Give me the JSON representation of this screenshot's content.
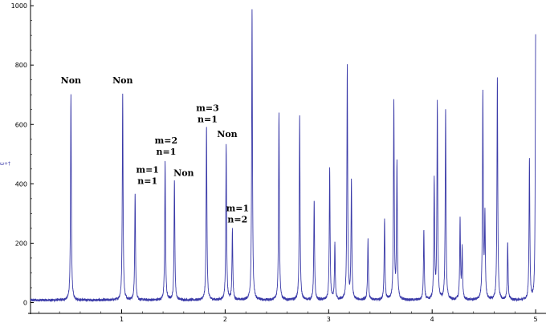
{
  "chart_data": {
    "type": "line",
    "title": "",
    "xlabel": "",
    "ylabel": "",
    "y_axis_glyph": "ω+†",
    "xlim": [
      0,
      5
    ],
    "ylim": [
      0,
      1000
    ],
    "x_ticks": [
      1,
      2,
      3,
      4,
      5
    ],
    "x_tick_labels": [
      "1",
      "2",
      "3",
      "4",
      "5"
    ],
    "y_ticks": [
      0,
      200,
      400,
      600,
      800,
      1000
    ],
    "y_tick_labels": [
      "0",
      "200",
      "400",
      "600",
      "800",
      "1000"
    ],
    "grid": false,
    "line_color": "#3a3aa8",
    "baseline": 8,
    "series": [
      {
        "peaks": [
          {
            "x": 0.51,
            "y": 700
          },
          {
            "x": 1.01,
            "y": 705
          },
          {
            "x": 1.13,
            "y": 368
          },
          {
            "x": 1.42,
            "y": 475
          },
          {
            "x": 1.51,
            "y": 412
          },
          {
            "x": 1.82,
            "y": 592
          },
          {
            "x": 2.01,
            "y": 530
          },
          {
            "x": 2.07,
            "y": 245
          },
          {
            "x": 2.26,
            "y": 985
          },
          {
            "x": 2.52,
            "y": 638
          },
          {
            "x": 2.72,
            "y": 625
          },
          {
            "x": 2.86,
            "y": 342
          },
          {
            "x": 3.01,
            "y": 450
          },
          {
            "x": 3.06,
            "y": 195
          },
          {
            "x": 3.18,
            "y": 793
          },
          {
            "x": 3.22,
            "y": 405
          },
          {
            "x": 3.38,
            "y": 212
          },
          {
            "x": 3.54,
            "y": 280
          },
          {
            "x": 3.63,
            "y": 675
          },
          {
            "x": 3.66,
            "y": 465
          },
          {
            "x": 3.92,
            "y": 245
          },
          {
            "x": 4.02,
            "y": 408
          },
          {
            "x": 4.05,
            "y": 668
          },
          {
            "x": 4.13,
            "y": 648
          },
          {
            "x": 4.27,
            "y": 275
          },
          {
            "x": 4.29,
            "y": 180
          },
          {
            "x": 4.49,
            "y": 700
          },
          {
            "x": 4.51,
            "y": 280
          },
          {
            "x": 4.63,
            "y": 755
          },
          {
            "x": 4.73,
            "y": 202
          },
          {
            "x": 4.94,
            "y": 478
          },
          {
            "x": 5.0,
            "y": 897
          }
        ]
      }
    ],
    "annotations": [
      {
        "lines": [
          "Non"
        ],
        "x": 0.51,
        "y": 738
      },
      {
        "lines": [
          "Non"
        ],
        "x": 1.01,
        "y": 738
      },
      {
        "lines": [
          "m=1",
          "n=1"
        ],
        "x": 1.25,
        "y": 437
      },
      {
        "lines": [
          "m=2",
          "n=1"
        ],
        "x": 1.43,
        "y": 536
      },
      {
        "lines": [
          "Non"
        ],
        "x": 1.6,
        "y": 427
      },
      {
        "lines": [
          "m=3",
          "n=1"
        ],
        "x": 1.83,
        "y": 645
      },
      {
        "lines": [
          "Non"
        ],
        "x": 2.02,
        "y": 557
      },
      {
        "lines": [
          "m=1",
          "n=2"
        ],
        "x": 2.12,
        "y": 308
      }
    ]
  }
}
